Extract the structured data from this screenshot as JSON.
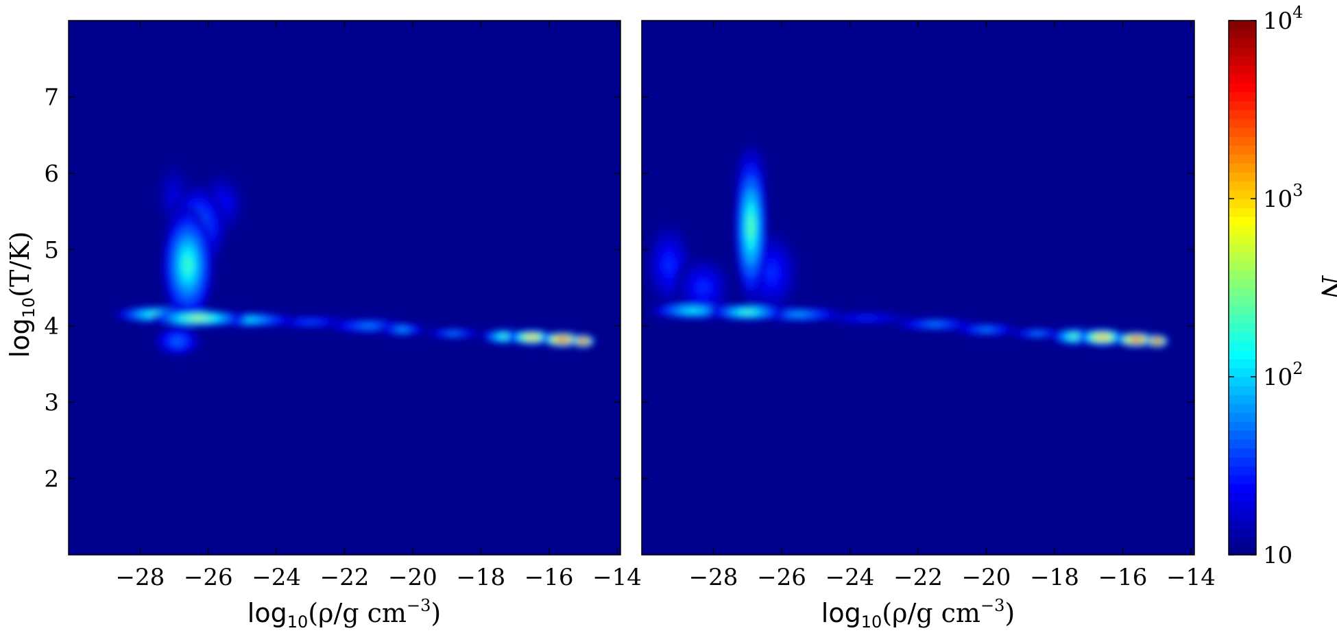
{
  "chart_data": [
    {
      "type": "heatmap",
      "title": "",
      "xlabel": "log10(ρ/g cm−3)",
      "ylabel": "log10(T/K)",
      "xlim": [
        -30.1,
        -13.9
      ],
      "ylim": [
        1.0,
        8.0
      ],
      "xticks": [
        -28,
        -26,
        -24,
        -22,
        -20,
        -18,
        -16,
        -14
      ],
      "yticks": [
        2,
        3,
        4,
        5,
        6,
        7
      ],
      "background_color": "#00008f",
      "density_features": [
        {
          "x": -27.5,
          "y": 4.15,
          "sx": 0.9,
          "sy": 0.08,
          "log_n": 2.4
        },
        {
          "x": -26.3,
          "y": 4.1,
          "sx": 1.0,
          "sy": 0.08,
          "log_n": 2.7
        },
        {
          "x": -24.8,
          "y": 4.08,
          "sx": 1.0,
          "sy": 0.07,
          "log_n": 2.1
        },
        {
          "x": -23.0,
          "y": 4.05,
          "sx": 1.0,
          "sy": 0.06,
          "log_n": 1.6
        },
        {
          "x": -21.3,
          "y": 4.0,
          "sx": 0.9,
          "sy": 0.07,
          "log_n": 1.8
        },
        {
          "x": -20.3,
          "y": 3.95,
          "sx": 0.5,
          "sy": 0.06,
          "log_n": 1.9
        },
        {
          "x": -18.8,
          "y": 3.9,
          "sx": 0.6,
          "sy": 0.05,
          "log_n": 1.8
        },
        {
          "x": -17.3,
          "y": 3.86,
          "sx": 0.5,
          "sy": 0.07,
          "log_n": 2.4
        },
        {
          "x": -16.5,
          "y": 3.85,
          "sx": 0.5,
          "sy": 0.07,
          "log_n": 3.2
        },
        {
          "x": -15.6,
          "y": 3.82,
          "sx": 0.45,
          "sy": 0.07,
          "log_n": 3.8
        },
        {
          "x": -15.0,
          "y": 3.8,
          "sx": 0.25,
          "sy": 0.06,
          "log_n": 4.0
        },
        {
          "x": -26.6,
          "y": 4.8,
          "sx": 0.55,
          "sy": 0.55,
          "log_n": 2.3
        },
        {
          "x": -26.3,
          "y": 5.3,
          "sx": 0.6,
          "sy": 0.4,
          "log_n": 1.8
        },
        {
          "x": -25.6,
          "y": 5.6,
          "sx": 0.5,
          "sy": 0.3,
          "log_n": 1.4
        },
        {
          "x": -27.0,
          "y": 5.7,
          "sx": 0.4,
          "sy": 0.35,
          "log_n": 1.3
        },
        {
          "x": -26.9,
          "y": 3.8,
          "sx": 0.5,
          "sy": 0.15,
          "log_n": 1.7
        }
      ]
    },
    {
      "type": "heatmap",
      "title": "",
      "xlabel": "log10(ρ/g cm−3)",
      "ylabel": "",
      "xlim": [
        -30.1,
        -13.9
      ],
      "ylim": [
        1.0,
        8.0
      ],
      "xticks": [
        -28,
        -26,
        -24,
        -22,
        -20,
        -18,
        -16,
        -14
      ],
      "yticks": [
        2,
        3,
        4,
        5,
        6,
        7
      ],
      "background_color": "#00008f",
      "density_features": [
        {
          "x": -28.6,
          "y": 4.2,
          "sx": 0.9,
          "sy": 0.08,
          "log_n": 2.2
        },
        {
          "x": -27.0,
          "y": 4.18,
          "sx": 0.8,
          "sy": 0.08,
          "log_n": 2.4
        },
        {
          "x": -25.5,
          "y": 4.15,
          "sx": 1.0,
          "sy": 0.07,
          "log_n": 1.9
        },
        {
          "x": -23.5,
          "y": 4.1,
          "sx": 1.0,
          "sy": 0.06,
          "log_n": 1.5
        },
        {
          "x": -21.5,
          "y": 4.02,
          "sx": 0.9,
          "sy": 0.06,
          "log_n": 1.8
        },
        {
          "x": -20.0,
          "y": 3.95,
          "sx": 0.7,
          "sy": 0.06,
          "log_n": 1.8
        },
        {
          "x": -18.5,
          "y": 3.9,
          "sx": 0.6,
          "sy": 0.05,
          "log_n": 1.8
        },
        {
          "x": -17.4,
          "y": 3.86,
          "sx": 0.5,
          "sy": 0.08,
          "log_n": 2.5
        },
        {
          "x": -16.6,
          "y": 3.85,
          "sx": 0.5,
          "sy": 0.08,
          "log_n": 3.3
        },
        {
          "x": -15.6,
          "y": 3.82,
          "sx": 0.45,
          "sy": 0.07,
          "log_n": 3.8
        },
        {
          "x": -15.0,
          "y": 3.8,
          "sx": 0.25,
          "sy": 0.06,
          "log_n": 4.0
        },
        {
          "x": -26.9,
          "y": 5.3,
          "sx": 0.35,
          "sy": 0.7,
          "log_n": 2.4
        },
        {
          "x": -26.9,
          "y": 5.9,
          "sx": 0.35,
          "sy": 0.35,
          "log_n": 1.6
        },
        {
          "x": -26.3,
          "y": 4.7,
          "sx": 0.6,
          "sy": 0.4,
          "log_n": 1.5
        },
        {
          "x": -29.3,
          "y": 4.8,
          "sx": 0.5,
          "sy": 0.4,
          "log_n": 1.5
        },
        {
          "x": -28.3,
          "y": 4.5,
          "sx": 0.6,
          "sy": 0.3,
          "log_n": 1.5
        }
      ]
    }
  ],
  "colorbar": {
    "label": "N",
    "scale": "log",
    "range": [
      10,
      10000
    ],
    "ticks": [
      {
        "value": 10,
        "base": "10",
        "exp": ""
      },
      {
        "value": 100,
        "base": "10",
        "exp": "2"
      },
      {
        "value": 1000,
        "base": "10",
        "exp": "3"
      },
      {
        "value": 10000,
        "base": "10",
        "exp": "4"
      }
    ],
    "colormap": "jet"
  }
}
